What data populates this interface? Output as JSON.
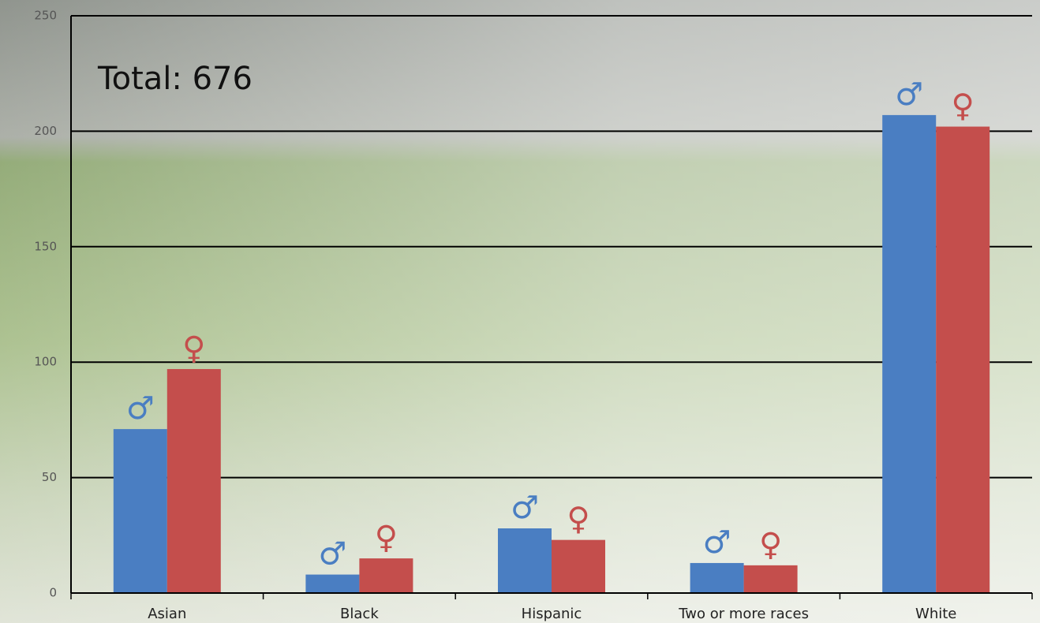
{
  "chart_data": {
    "type": "bar",
    "annotation": "Total: 676",
    "categories": [
      "Asian",
      "Black",
      "Hispanic",
      "Two or more races",
      "White"
    ],
    "series": [
      {
        "name": "♂",
        "color": "#4a7ec2",
        "values": [
          71,
          8,
          28,
          13,
          207
        ]
      },
      {
        "name": "♀",
        "color": "#c44e4c",
        "values": [
          97,
          15,
          23,
          12,
          202
        ]
      }
    ],
    "ylim": [
      0,
      250
    ],
    "yticks": [
      0,
      50,
      100,
      150,
      200,
      250
    ],
    "grid": true
  }
}
